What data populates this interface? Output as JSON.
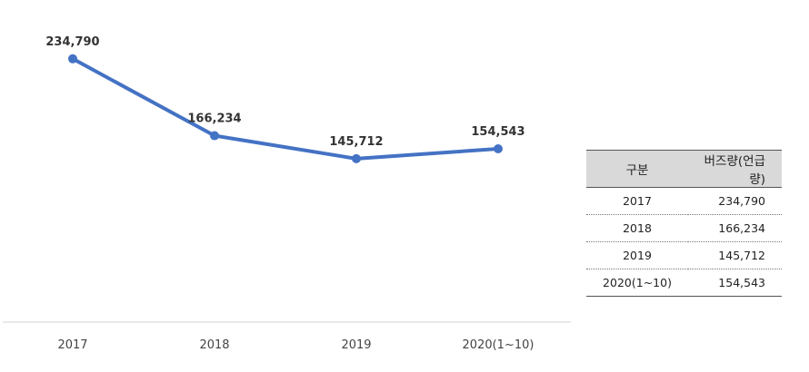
{
  "colors": {
    "series": "#4472c4",
    "axis": "#d0d0d0",
    "table_header_bg": "#d9d9d9"
  },
  "chart_data": {
    "type": "line",
    "categories": [
      "2017",
      "2018",
      "2019",
      "2020(1~10)"
    ],
    "series": [
      {
        "values": [
          234790,
          166234,
          145712,
          154543
        ]
      }
    ],
    "data_labels": [
      "234,790",
      "166,234",
      "145,712",
      "154,543"
    ],
    "title": "",
    "xlabel": "",
    "ylabel": "",
    "ylim": [
      0,
      250000
    ],
    "grid": false,
    "legend": "none"
  },
  "table": {
    "headers": [
      "구분",
      "버즈량(언급량)"
    ],
    "rows": [
      [
        "2017",
        "234,790"
      ],
      [
        "2018",
        "166,234"
      ],
      [
        "2019",
        "145,712"
      ],
      [
        "2020(1~10)",
        "154,543"
      ]
    ]
  }
}
